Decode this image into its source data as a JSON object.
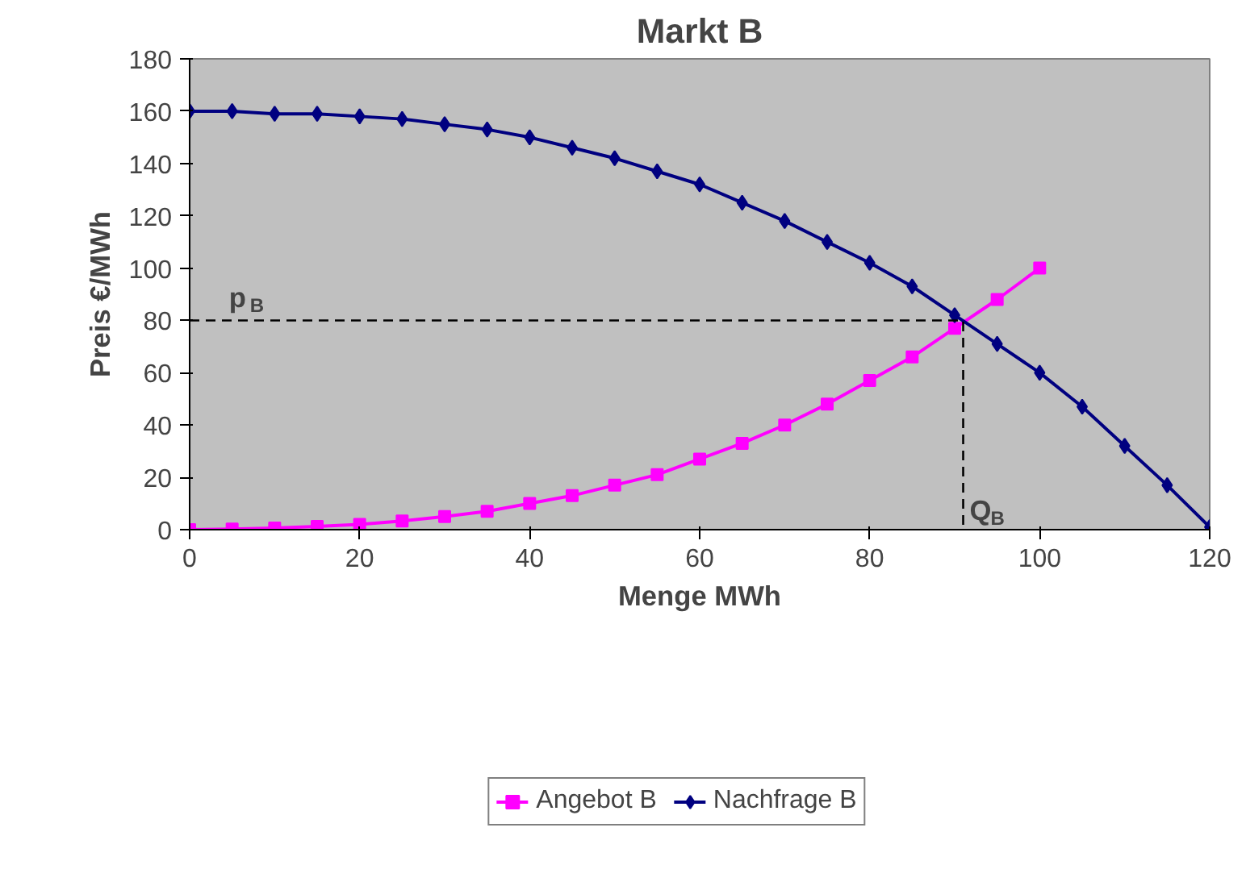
{
  "chart_data": {
    "type": "line",
    "title": "Markt B",
    "xlabel": "Menge MWh",
    "ylabel": "Preis €/MWh",
    "xlim": [
      0,
      120
    ],
    "xticks": [
      0,
      20,
      40,
      60,
      80,
      100,
      120
    ],
    "ylim": [
      0,
      180
    ],
    "yticks": [
      0,
      20,
      40,
      60,
      80,
      100,
      120,
      140,
      160,
      180
    ],
    "grid": false,
    "legend": "bottom",
    "x": [
      0,
      5,
      10,
      15,
      20,
      25,
      30,
      35,
      40,
      45,
      50,
      55,
      60,
      65,
      70,
      75,
      80,
      85,
      90,
      95,
      100,
      105,
      110,
      115,
      120
    ],
    "series": [
      {
        "name": "Angebot B",
        "color": "#ff00ff",
        "marker": "square",
        "x": [
          0,
          5,
          10,
          15,
          20,
          25,
          30,
          35,
          40,
          45,
          50,
          55,
          60,
          65,
          70,
          75,
          80,
          85,
          90,
          95,
          100
        ],
        "values": [
          0,
          0.2,
          0.6,
          1.2,
          2,
          3.3,
          5,
          7,
          10,
          13,
          17,
          21,
          27,
          33,
          40,
          48,
          57,
          66,
          77,
          88,
          100
        ]
      },
      {
        "name": "Nachfrage B",
        "color": "#000080",
        "marker": "diamond",
        "values": [
          160,
          160,
          159,
          159,
          158,
          157,
          155,
          153,
          150,
          146,
          142,
          137,
          132,
          125,
          118,
          110,
          102,
          93,
          82,
          71,
          60,
          47,
          32,
          17,
          1
        ]
      },
      {
        "color": "#000000",
        "marker": "none",
        "line_style": "dashed",
        "x": [
          0,
          91,
          91
        ],
        "values": [
          80,
          80,
          0
        ]
      }
    ],
    "annotations": [
      {
        "text": "p$_{B}$",
        "x": 5,
        "y": 80
      },
      {
        "text": "Q$_{B}$",
        "x": 91,
        "y": 0
      }
    ]
  }
}
